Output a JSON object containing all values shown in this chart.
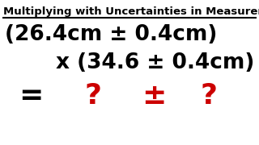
{
  "title": "Multiplying with Uncertainties in Measurements",
  "line1": "(26.4cm ± 0.4cm)",
  "line2": "x (34.6 ± 0.4cm)",
  "eq_symbol": "=",
  "pm_symbol": "±",
  "q1": "?",
  "q2": "?",
  "bg_color": "#ffffff",
  "text_color": "#000000",
  "red_color": "#cc0000",
  "title_fontsize": 9.5,
  "main_fontsize": 19,
  "result_fontsize": 26
}
